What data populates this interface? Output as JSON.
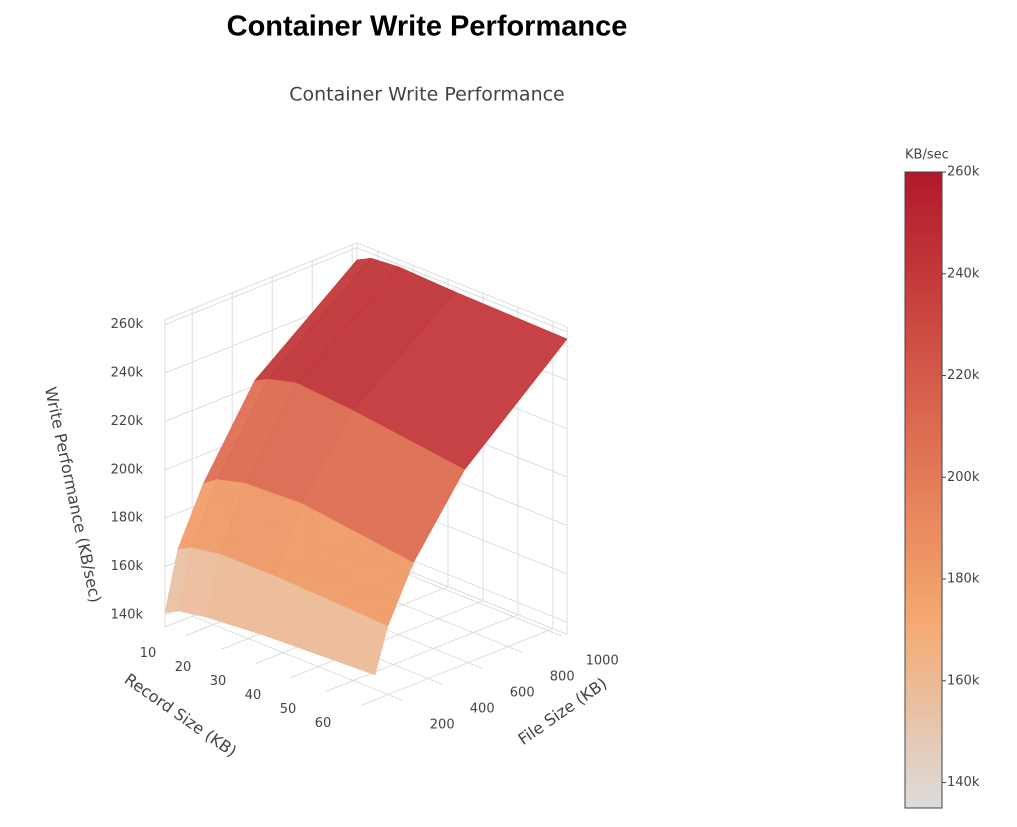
{
  "page_title": "Container Write Performance",
  "chart_data": {
    "type": "surface",
    "title": "Container Write Performance",
    "x_title": "Record Size (KB)",
    "y_title": "File Size (KB)",
    "z_title": "Write Performance (KB/sec)",
    "x": [
      4,
      8,
      16,
      32,
      64
    ],
    "y": [
      64,
      128,
      256,
      512,
      1024
    ],
    "z": [
      [
        141000,
        144000,
        146000,
        148000,
        150000
      ],
      [
        165000,
        168000,
        170000,
        170000,
        168000
      ],
      [
        188000,
        192000,
        195000,
        196000,
        190000
      ],
      [
        222000,
        225000,
        228000,
        226000,
        220000
      ],
      [
        255000,
        258000,
        259000,
        258000,
        257000
      ]
    ],
    "xlim": [
      4,
      64
    ],
    "ylim": [
      64,
      1024
    ],
    "zlim": [
      135000,
      262000
    ],
    "xticks": [
      10,
      20,
      30,
      40,
      50,
      60
    ],
    "yticks": [
      200,
      400,
      600,
      800,
      1000
    ],
    "zticks": [
      {
        "value": 140000,
        "label": "140k"
      },
      {
        "value": 160000,
        "label": "160k"
      },
      {
        "value": 180000,
        "label": "180k"
      },
      {
        "value": 200000,
        "label": "200k"
      },
      {
        "value": 220000,
        "label": "220k"
      },
      {
        "value": 240000,
        "label": "240k"
      },
      {
        "value": 260000,
        "label": "260k"
      }
    ],
    "grid": true,
    "colorbar_title": "KB/sec",
    "clim": [
      135000,
      260000
    ],
    "colorscale": [
      [
        0,
        "#dcdcdc"
      ],
      [
        0.3,
        "#f5a86e"
      ],
      [
        0.6,
        "#dc6a50"
      ],
      [
        1,
        "#b2182b"
      ]
    ]
  }
}
